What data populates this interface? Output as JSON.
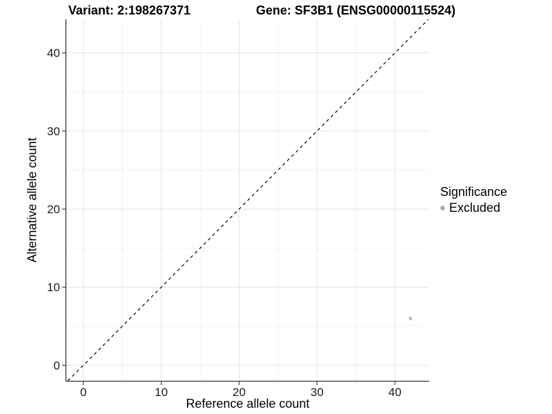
{
  "figure": {
    "variant_title": "Variant: 2:198267371",
    "gene_title": "Gene: SF3B1 (ENSG00000115524)"
  },
  "chart_data": {
    "type": "scatter",
    "title": "Variant: 2:198267371  /  Gene: SF3B1 (ENSG00000115524)",
    "xlabel": "Reference allele count",
    "ylabel": "Alternative allele count",
    "xlim": [
      -2.2,
      44.4
    ],
    "ylim": [
      -2.0,
      44.3
    ],
    "x_major_ticks": [
      0,
      10,
      20,
      30,
      40
    ],
    "y_major_ticks": [
      0,
      10,
      20,
      30,
      40
    ],
    "x_minor_ticks": [
      5,
      15,
      25,
      35
    ],
    "y_minor_ticks": [
      5,
      15,
      25,
      35
    ],
    "grid": "major+minor",
    "reference_line": {
      "type": "identity y=x",
      "style": "dashed",
      "color": "#000000"
    },
    "series": [
      {
        "name": "Excluded",
        "points": [
          {
            "x": 42,
            "y": 6
          }
        ],
        "color": "#b8b8b8"
      }
    ],
    "legend": {
      "title": "Significance",
      "position": "right",
      "entries": [
        {
          "label": "Excluded",
          "marker": "circle",
          "color": "#b0b0b0"
        }
      ]
    },
    "colors": {
      "background": "#ffffff",
      "grid_major": "#e4e4e4",
      "grid_minor": "#f1f1f1",
      "axis_line": "#333333",
      "tick_mark": "#333333",
      "tick_label": "#1a1a1a"
    }
  }
}
